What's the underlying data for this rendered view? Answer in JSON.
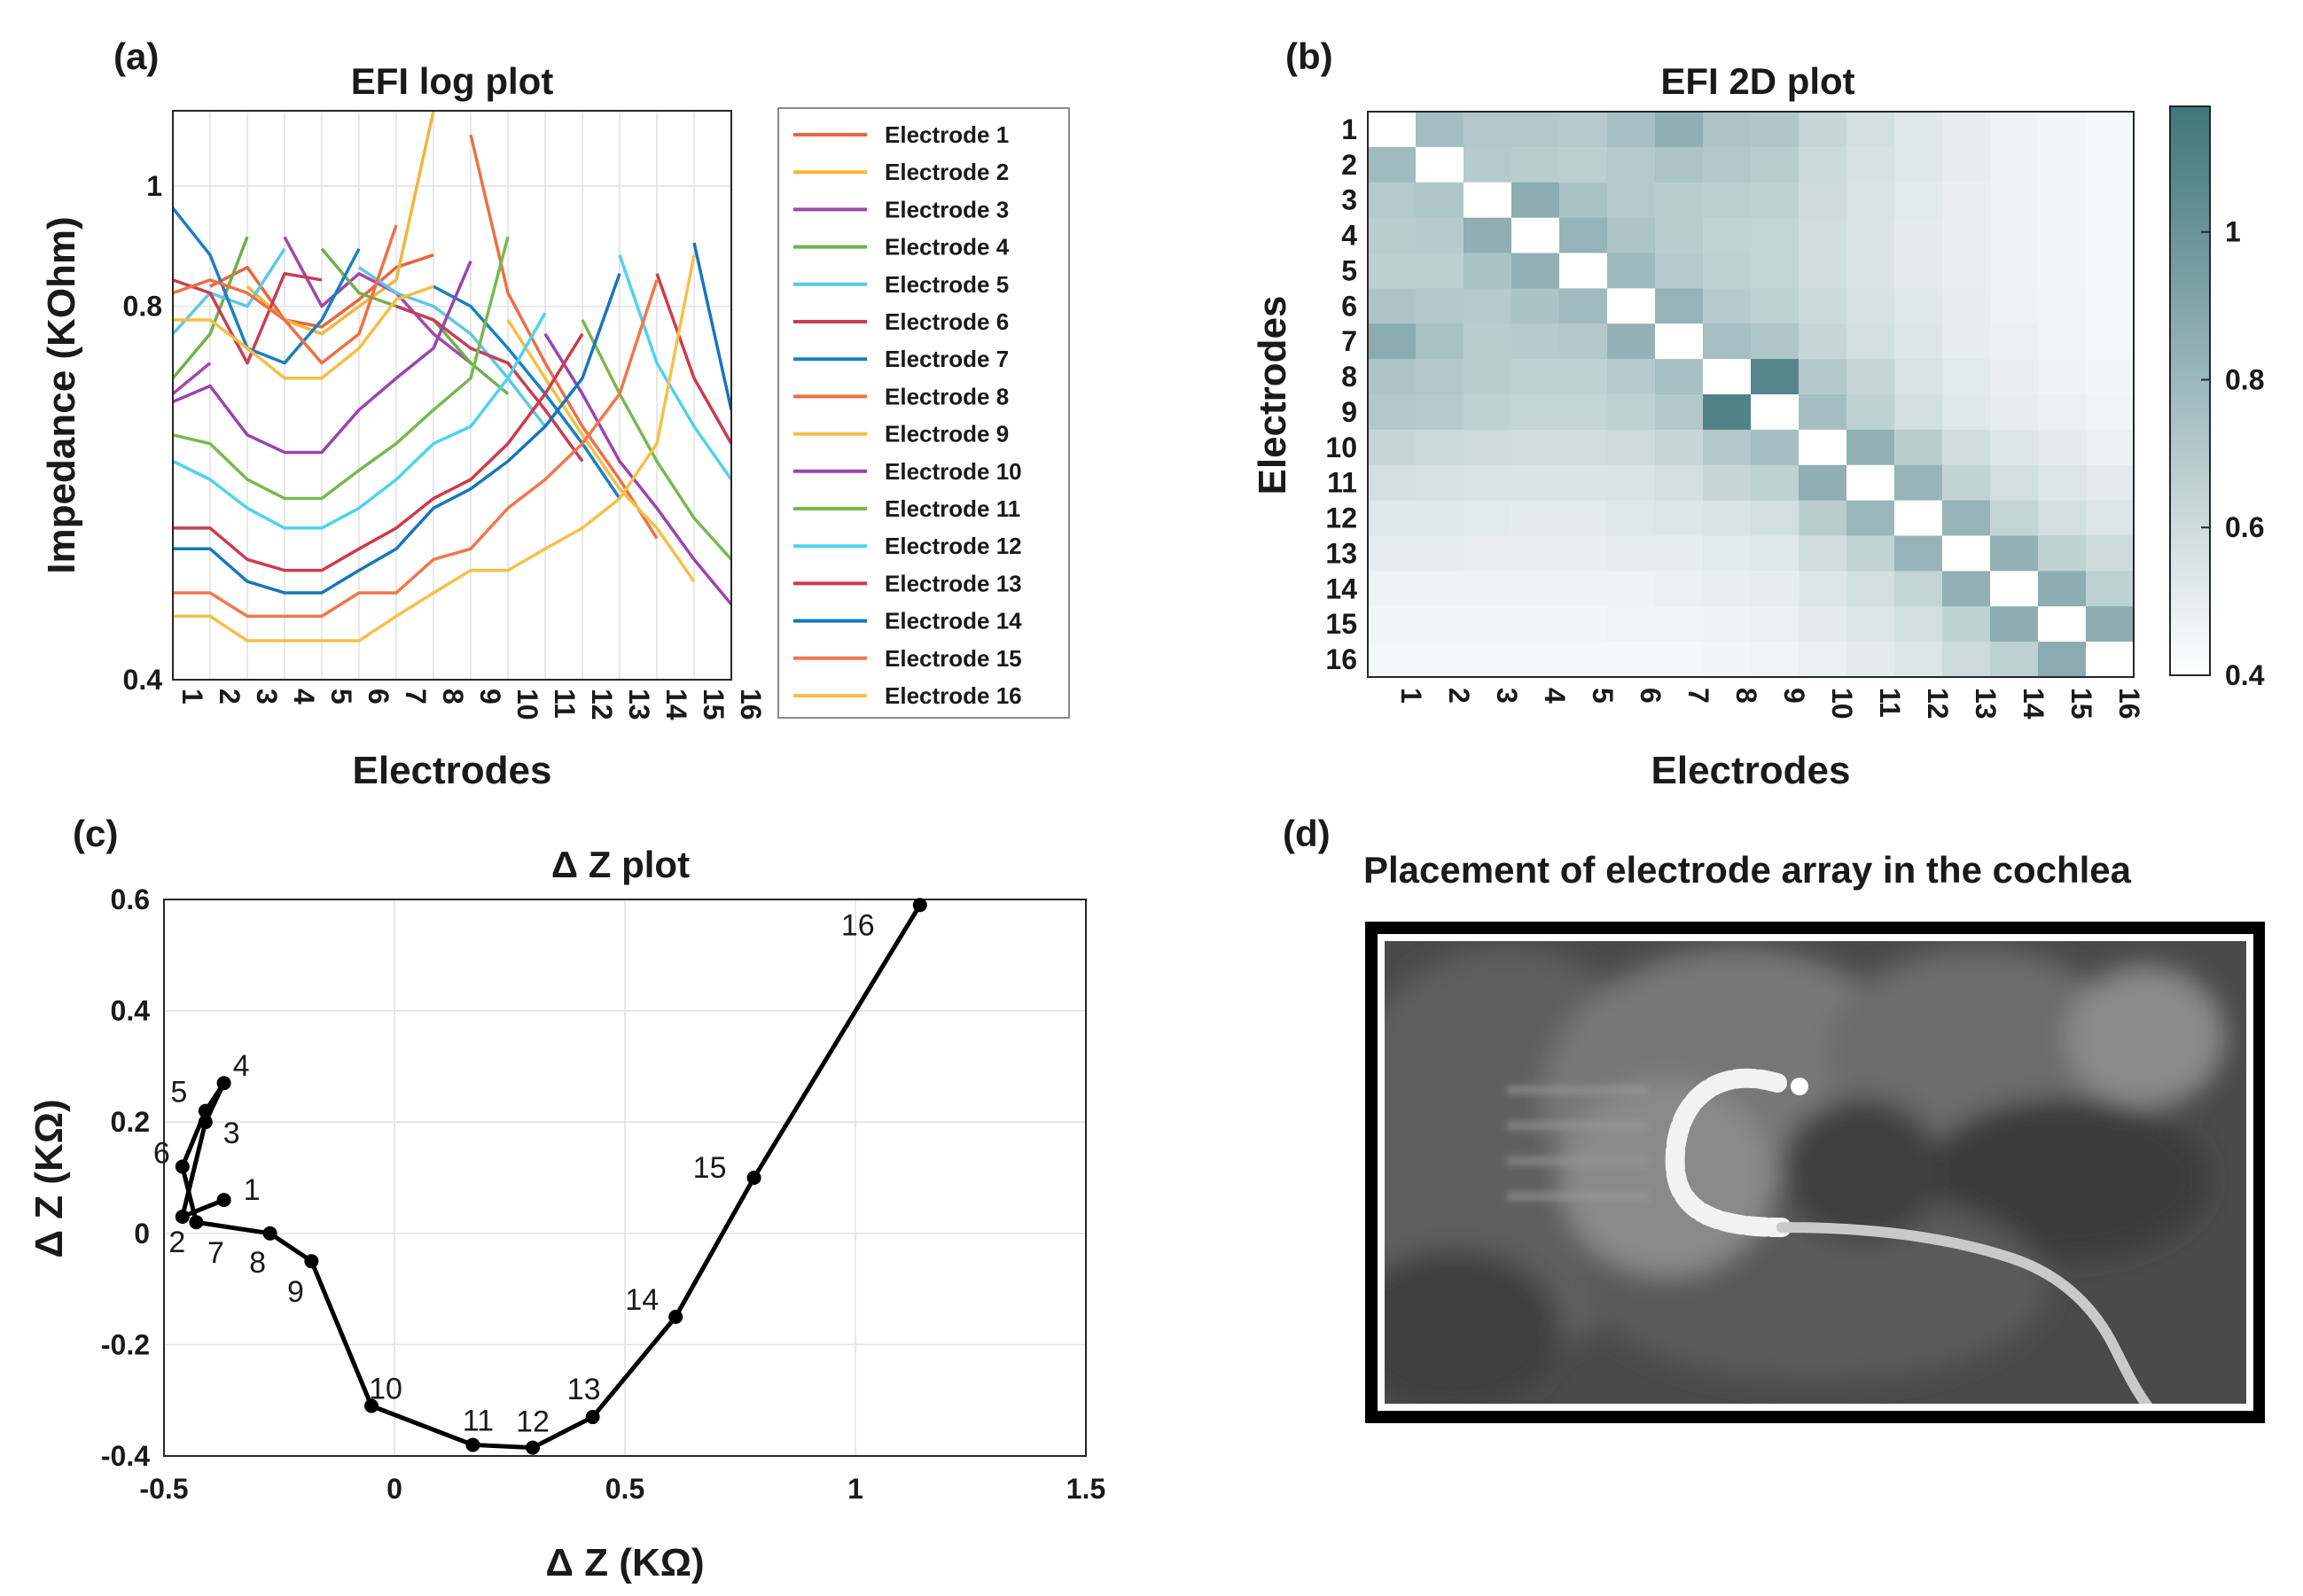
{
  "panels": {
    "a": {
      "label": "(a)",
      "chart_data": {
        "type": "line",
        "title": "EFI log plot",
        "xlabel": "Electrodes",
        "ylabel": "Impedance (KOhm)",
        "yscale": "log",
        "ylim": [
          0.4,
          1.15
        ],
        "yticks": [
          "0.4",
          "0.8",
          "1"
        ],
        "yticks_val": [
          0.4,
          0.8,
          1.0
        ],
        "categories": [
          "1",
          "2",
          "3",
          "4",
          "5",
          "6",
          "7",
          "8",
          "9",
          "10",
          "11",
          "12",
          "13",
          "14",
          "15",
          "16"
        ],
        "legend_position": "outside-right",
        "series": [
          {
            "name": "Electrode 1",
            "color": "#e8643c",
            "values": [
              null,
              0.83,
              0.86,
              0.78,
              0.77,
              0.81,
              0.86,
              0.88,
              null,
              null,
              null,
              null,
              null,
              null,
              null,
              null
            ]
          },
          {
            "name": "Electrode 2",
            "color": "#f2b63c",
            "values": [
              0.82,
              null,
              0.83,
              0.78,
              0.76,
              0.8,
              0.84,
              1.15,
              null,
              null,
              null,
              null,
              null,
              null,
              null,
              null
            ]
          },
          {
            "name": "Electrode 3",
            "color": "#a347a8",
            "values": [
              0.68,
              0.72,
              null,
              0.91,
              0.8,
              0.85,
              0.82,
              0.76,
              0.72,
              null,
              null,
              null,
              null,
              null,
              null,
              null
            ]
          },
          {
            "name": "Electrode 4",
            "color": "#6fb04c",
            "values": [
              0.7,
              0.76,
              0.91,
              null,
              0.89,
              0.82,
              0.8,
              0.78,
              0.72,
              0.68,
              null,
              null,
              null,
              null,
              null,
              null
            ]
          },
          {
            "name": "Electrode 5",
            "color": "#5cc8e6",
            "values": [
              0.76,
              0.82,
              0.8,
              0.89,
              null,
              0.86,
              0.82,
              0.8,
              0.76,
              0.7,
              0.64,
              null,
              null,
              null,
              null,
              null
            ]
          },
          {
            "name": "Electrode 6",
            "color": "#c93d55",
            "values": [
              0.84,
              0.82,
              0.72,
              0.85,
              0.84,
              null,
              0.8,
              0.78,
              0.74,
              0.72,
              0.66,
              0.6,
              null,
              null,
              null,
              null
            ]
          },
          {
            "name": "Electrode 7",
            "color": "#1a7fc4",
            "values": [
              0.96,
              0.88,
              0.74,
              0.72,
              0.78,
              0.89,
              null,
              0.83,
              0.8,
              0.74,
              0.68,
              0.62,
              0.56,
              null,
              null,
              null
            ]
          },
          {
            "name": "Electrode 8",
            "color": "#ee6f45",
            "values": [
              0.82,
              0.84,
              0.82,
              0.78,
              0.72,
              0.76,
              0.93,
              null,
              1.1,
              0.82,
              0.72,
              0.64,
              0.58,
              0.52,
              null,
              null
            ]
          },
          {
            "name": "Electrode 9",
            "color": "#f4bf45",
            "values": [
              0.78,
              0.78,
              0.74,
              0.7,
              0.7,
              0.74,
              0.81,
              0.83,
              null,
              0.78,
              0.7,
              0.63,
              0.57,
              0.53,
              0.48,
              null
            ]
          },
          {
            "name": "Electrode 10",
            "color": "#9a43b0",
            "values": [
              0.67,
              0.69,
              0.63,
              0.61,
              0.61,
              0.66,
              0.7,
              0.74,
              0.87,
              null,
              0.76,
              0.68,
              0.6,
              0.55,
              0.5,
              0.46
            ]
          },
          {
            "name": "Electrode 11",
            "color": "#79b84f",
            "values": [
              0.63,
              0.62,
              0.58,
              0.56,
              0.56,
              0.59,
              0.62,
              0.66,
              0.7,
              0.91,
              null,
              0.78,
              0.68,
              0.6,
              0.54,
              0.5
            ]
          },
          {
            "name": "Electrode 12",
            "color": "#4fd2ee",
            "values": [
              0.6,
              0.58,
              0.55,
              0.53,
              0.53,
              0.55,
              0.58,
              0.62,
              0.64,
              0.7,
              0.79,
              null,
              0.88,
              0.72,
              0.64,
              0.58
            ]
          },
          {
            "name": "Electrode 13",
            "color": "#cf3a4a",
            "values": [
              0.53,
              0.53,
              0.5,
              0.49,
              0.49,
              0.51,
              0.53,
              0.56,
              0.58,
              0.62,
              0.68,
              0.76,
              null,
              0.85,
              0.7,
              0.62
            ]
          },
          {
            "name": "Electrode 14",
            "color": "#1876ba",
            "values": [
              0.51,
              0.51,
              0.48,
              0.47,
              0.47,
              0.49,
              0.51,
              0.55,
              0.57,
              0.6,
              0.64,
              0.7,
              0.85,
              null,
              0.9,
              0.66
            ]
          },
          {
            "name": "Electrode 15",
            "color": "#f0774c",
            "values": [
              0.47,
              0.47,
              0.45,
              0.45,
              0.45,
              0.47,
              0.47,
              0.5,
              0.51,
              0.55,
              0.58,
              0.62,
              0.68,
              0.84,
              null,
              0.62
            ]
          },
          {
            "name": "Electrode 16",
            "color": "#f5c04a",
            "values": [
              0.45,
              0.45,
              0.43,
              0.43,
              0.43,
              0.43,
              0.45,
              0.47,
              0.49,
              0.49,
              0.51,
              0.53,
              0.56,
              0.62,
              0.88,
              null
            ]
          }
        ]
      }
    },
    "b": {
      "label": "(b)",
      "chart_data": {
        "type": "heatmap",
        "title": "EFI 2D plot",
        "xlabel": "Electrodes",
        "ylabel": "Electrodes",
        "categories": [
          "1",
          "2",
          "3",
          "4",
          "5",
          "6",
          "7",
          "8",
          "9",
          "10",
          "11",
          "12",
          "13",
          "14",
          "15",
          "16"
        ],
        "clim": [
          0.4,
          1.17
        ],
        "colorbar_ticks": [
          "0.4",
          "0.6",
          "0.8",
          "1"
        ],
        "colorbar_ticks_val": [
          0.4,
          0.6,
          0.8,
          1.0
        ],
        "color_low": "#ffffff",
        "color_high": "#3f767c",
        "values": [
          [
            0.4,
            0.77,
            0.71,
            0.71,
            0.7,
            0.76,
            0.85,
            0.73,
            0.72,
            0.63,
            0.58,
            0.53,
            0.5,
            0.47,
            0.45,
            0.44
          ],
          [
            0.78,
            0.4,
            0.7,
            0.68,
            0.67,
            0.7,
            0.73,
            0.71,
            0.68,
            0.61,
            0.57,
            0.53,
            0.5,
            0.47,
            0.45,
            0.44
          ],
          [
            0.7,
            0.72,
            0.4,
            0.86,
            0.74,
            0.7,
            0.68,
            0.67,
            0.66,
            0.6,
            0.56,
            0.52,
            0.49,
            0.47,
            0.45,
            0.44
          ],
          [
            0.68,
            0.69,
            0.85,
            0.4,
            0.82,
            0.73,
            0.68,
            0.65,
            0.64,
            0.59,
            0.55,
            0.51,
            0.49,
            0.47,
            0.45,
            0.44
          ],
          [
            0.67,
            0.67,
            0.74,
            0.84,
            0.4,
            0.79,
            0.7,
            0.66,
            0.64,
            0.59,
            0.55,
            0.51,
            0.49,
            0.47,
            0.45,
            0.44
          ],
          [
            0.73,
            0.71,
            0.7,
            0.74,
            0.78,
            0.4,
            0.82,
            0.69,
            0.66,
            0.61,
            0.57,
            0.53,
            0.5,
            0.47,
            0.46,
            0.44
          ],
          [
            0.87,
            0.75,
            0.68,
            0.69,
            0.71,
            0.83,
            0.4,
            0.76,
            0.72,
            0.63,
            0.58,
            0.54,
            0.5,
            0.48,
            0.46,
            0.44
          ],
          [
            0.73,
            0.71,
            0.68,
            0.66,
            0.66,
            0.69,
            0.76,
            0.4,
            1.08,
            0.71,
            0.63,
            0.56,
            0.52,
            0.49,
            0.47,
            0.45
          ],
          [
            0.71,
            0.69,
            0.66,
            0.64,
            0.64,
            0.66,
            0.71,
            1.1,
            0.4,
            0.77,
            0.66,
            0.58,
            0.53,
            0.5,
            0.48,
            0.46
          ],
          [
            0.63,
            0.61,
            0.6,
            0.59,
            0.59,
            0.6,
            0.63,
            0.71,
            0.77,
            0.4,
            0.84,
            0.68,
            0.59,
            0.54,
            0.51,
            0.48
          ],
          [
            0.58,
            0.57,
            0.56,
            0.55,
            0.55,
            0.56,
            0.58,
            0.63,
            0.66,
            0.85,
            0.4,
            0.82,
            0.65,
            0.58,
            0.54,
            0.51
          ],
          [
            0.53,
            0.53,
            0.52,
            0.51,
            0.51,
            0.53,
            0.54,
            0.56,
            0.58,
            0.68,
            0.81,
            0.4,
            0.82,
            0.64,
            0.58,
            0.54
          ],
          [
            0.5,
            0.5,
            0.49,
            0.49,
            0.49,
            0.5,
            0.5,
            0.52,
            0.53,
            0.59,
            0.65,
            0.82,
            0.4,
            0.84,
            0.66,
            0.6
          ],
          [
            0.47,
            0.47,
            0.47,
            0.47,
            0.47,
            0.47,
            0.48,
            0.49,
            0.5,
            0.54,
            0.58,
            0.64,
            0.84,
            0.4,
            0.86,
            0.66
          ],
          [
            0.45,
            0.45,
            0.45,
            0.45,
            0.45,
            0.46,
            0.46,
            0.47,
            0.48,
            0.51,
            0.54,
            0.58,
            0.66,
            0.86,
            0.4,
            0.86
          ],
          [
            0.44,
            0.44,
            0.44,
            0.44,
            0.44,
            0.44,
            0.44,
            0.45,
            0.46,
            0.48,
            0.51,
            0.54,
            0.6,
            0.66,
            0.87,
            0.4
          ]
        ]
      }
    },
    "c": {
      "label": "(c)",
      "chart_data": {
        "type": "line",
        "title": "Δ Z plot",
        "xlabel": "Δ Z (KΩ)",
        "ylabel": "Δ Z (KΩ)",
        "xlim": [
          -0.5,
          1.5
        ],
        "ylim": [
          -0.4,
          0.6
        ],
        "xticks": [
          "-0.5",
          "0",
          "0.5",
          "1",
          "1.5"
        ],
        "xticks_val": [
          -0.5,
          0,
          0.5,
          1,
          1.5
        ],
        "yticks": [
          "-0.4",
          "-0.2",
          "0",
          "0.2",
          "0.4",
          "0.6"
        ],
        "yticks_val": [
          -0.4,
          -0.2,
          0,
          0.2,
          0.4,
          0.6
        ],
        "grid": true,
        "points": [
          {
            "label": "1",
            "x": -0.37,
            "y": 0.06
          },
          {
            "label": "2",
            "x": -0.46,
            "y": 0.03
          },
          {
            "label": "3",
            "x": -0.41,
            "y": 0.2
          },
          {
            "label": "4",
            "x": -0.37,
            "y": 0.27
          },
          {
            "label": "5",
            "x": -0.41,
            "y": 0.22
          },
          {
            "label": "6",
            "x": -0.46,
            "y": 0.12
          },
          {
            "label": "7",
            "x": -0.43,
            "y": 0.02
          },
          {
            "label": "8",
            "x": -0.27,
            "y": 0.0
          },
          {
            "label": "9",
            "x": -0.18,
            "y": -0.05
          },
          {
            "label": "10",
            "x": -0.05,
            "y": -0.31
          },
          {
            "label": "11",
            "x": 0.17,
            "y": -0.38
          },
          {
            "label": "12",
            "x": 0.3,
            "y": -0.385
          },
          {
            "label": "13",
            "x": 0.43,
            "y": -0.33
          },
          {
            "label": "14",
            "x": 0.61,
            "y": -0.15
          },
          {
            "label": "15",
            "x": 0.78,
            "y": 0.1
          },
          {
            "label": "16",
            "x": 1.14,
            "y": 0.59
          }
        ]
      }
    },
    "d": {
      "label": "(d)",
      "title": "Placement of electrode array in the cochlea",
      "image": "ct-scan-cochlea-electrode-array"
    }
  }
}
